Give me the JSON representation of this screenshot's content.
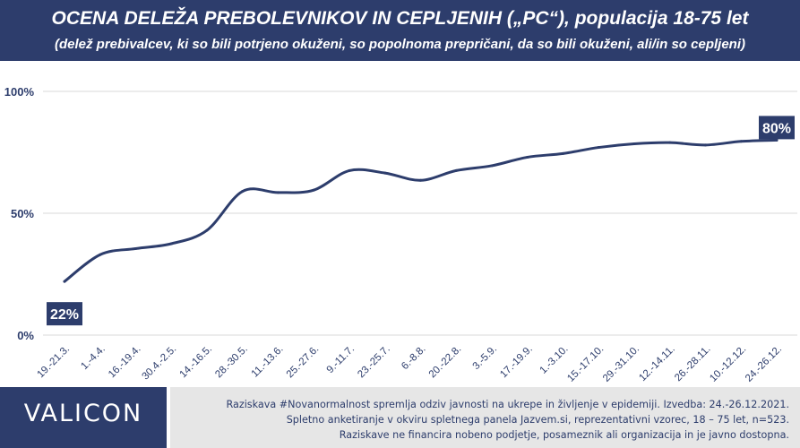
{
  "header": {
    "title": "OCENA DELEŽA PREBOLEVNIKOV IN CEPLJENIH („PC“), populacija 18-75 let",
    "subtitle": "(delež prebivalcev, ki so bili potrjeno okuženi, so popolnoma prepričani, da so bili okuženi, ali/in so cepljeni)"
  },
  "chart_data": {
    "type": "line",
    "categories": [
      "19.-21.3.",
      "1.-4.4.",
      "16.-19.4.",
      "30.4.-2.5.",
      "14.-16.5.",
      "28.-30.5.",
      "11.-13.6.",
      "25.-27.6.",
      "9.-11.7.",
      "23.-25.7.",
      "6.-8.8.",
      "20.-22.8.",
      "3.-5.9.",
      "17.-19.9.",
      "1.-3.10.",
      "15.-17.10.",
      "29.-31.10.",
      "12.-14.11.",
      "26.-28.11.",
      "10.-12.12.",
      "24.-26.12."
    ],
    "series": [
      {
        "values": [
          22,
          33,
          35.5,
          37.5,
          43,
          59,
          58.5,
          59.5,
          67.5,
          66.5,
          63.5,
          67.5,
          69.5,
          73,
          74.5,
          77,
          78.5,
          79,
          78,
          79.5,
          80
        ]
      }
    ],
    "y_ticks": [
      "0%",
      "50%",
      "100%"
    ],
    "ylim": [
      0,
      100
    ],
    "grid": true,
    "data_labels": {
      "first": "22%",
      "last": "80%"
    },
    "line_color": "#2d3d6c"
  },
  "footer": {
    "logo": "VALICON",
    "note1": "Raziskava #Novanormalnost spremlja odziv javnosti na ukrepe in življenje v epidemiji. Izvedba: 24.-26.12.2021.",
    "note2": "Spletno anketiranje v okviru spletnega panela Jazvem.si, reprezentativni vzorec, 18 – 75 let, n=523.",
    "note3": "Raziskave ne financira nobeno podjetje, posameznik ali organizacija in je javno dostopna."
  }
}
